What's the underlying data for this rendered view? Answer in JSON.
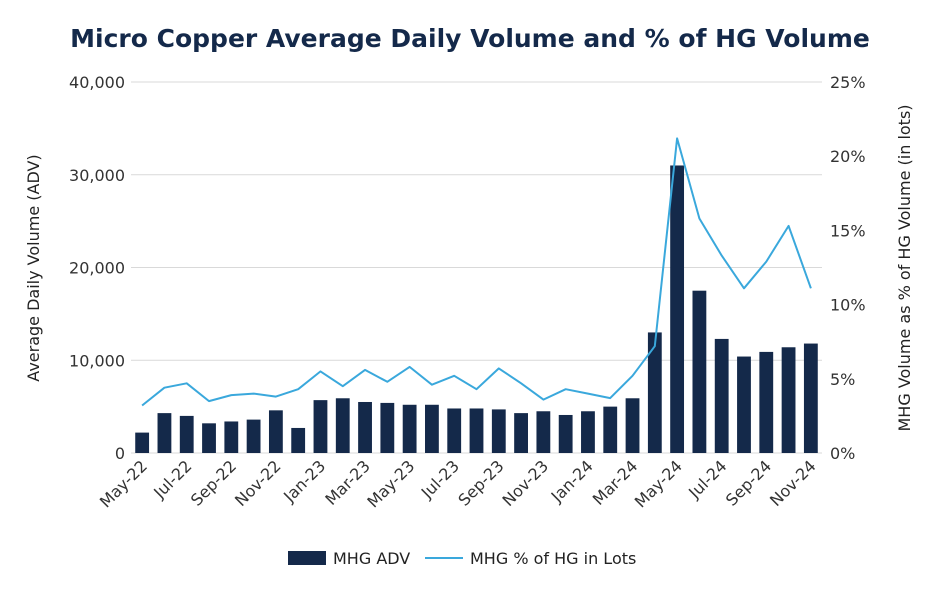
{
  "colors": {
    "bar": "#14294a",
    "line": "#3aa8dc",
    "grid": "#d9d9d9",
    "text": "#222222",
    "title": "#14294a"
  },
  "chart_data": {
    "type": "bar+line",
    "title": "Micro Copper Average Daily Volume and % of HG Volume",
    "ylabel_left": "Average Daily Volume (ADV)",
    "ylabel_right": "MHG Volume as % of HG Volume (in lots)",
    "ylim_left": [
      0,
      40000
    ],
    "ylim_right": [
      0,
      25
    ],
    "yticks_left": [
      "0",
      "10,000",
      "20,000",
      "30,000",
      "40,000"
    ],
    "yticks_right": [
      "0%",
      "5%",
      "10%",
      "15%",
      "20%",
      "25%"
    ],
    "grid": true,
    "legend_position": "bottom",
    "months": [
      "May-22",
      "Jun-22",
      "Jul-22",
      "Aug-22",
      "Sep-22",
      "Oct-22",
      "Nov-22",
      "Dec-22",
      "Jan-23",
      "Feb-23",
      "Mar-23",
      "Apr-23",
      "May-23",
      "Jun-23",
      "Jul-23",
      "Aug-23",
      "Sep-23",
      "Oct-23",
      "Nov-23",
      "Dec-23",
      "Jan-24",
      "Feb-24",
      "Mar-24",
      "Apr-24",
      "May-24",
      "Jun-24",
      "Jul-24",
      "Aug-24",
      "Sep-24",
      "Oct-24",
      "Nov-24"
    ],
    "x_tick_labels": [
      "May-22",
      "Jul-22",
      "Sep-22",
      "Nov-22",
      "Jan-23",
      "Mar-23",
      "May-23",
      "Jul-23",
      "Sep-23",
      "Nov-23",
      "Jan-24",
      "Mar-24",
      "May-24",
      "Jul-24",
      "Sep-24",
      "Nov-24"
    ],
    "series": [
      {
        "name": "MHG ADV",
        "type": "bar",
        "axis": "left",
        "values": [
          2200,
          4300,
          4000,
          3200,
          3400,
          3600,
          4600,
          2700,
          5700,
          5900,
          5500,
          5400,
          5200,
          5200,
          4800,
          4800,
          4700,
          4300,
          4500,
          4100,
          4500,
          5000,
          5900,
          13000,
          31000,
          17500,
          12300,
          10400,
          10900,
          11400,
          11800
        ]
      },
      {
        "name": "MHG % of HG in Lots",
        "type": "line",
        "axis": "right",
        "values": [
          3.2,
          4.4,
          4.7,
          3.5,
          3.9,
          4.0,
          3.8,
          4.3,
          5.5,
          4.5,
          5.6,
          4.8,
          5.8,
          4.6,
          5.2,
          4.3,
          5.7,
          4.7,
          3.6,
          4.3,
          4.0,
          3.7,
          5.2,
          7.2,
          21.2,
          15.8,
          13.3,
          11.1,
          12.9,
          15.3,
          11.1
        ]
      }
    ]
  }
}
